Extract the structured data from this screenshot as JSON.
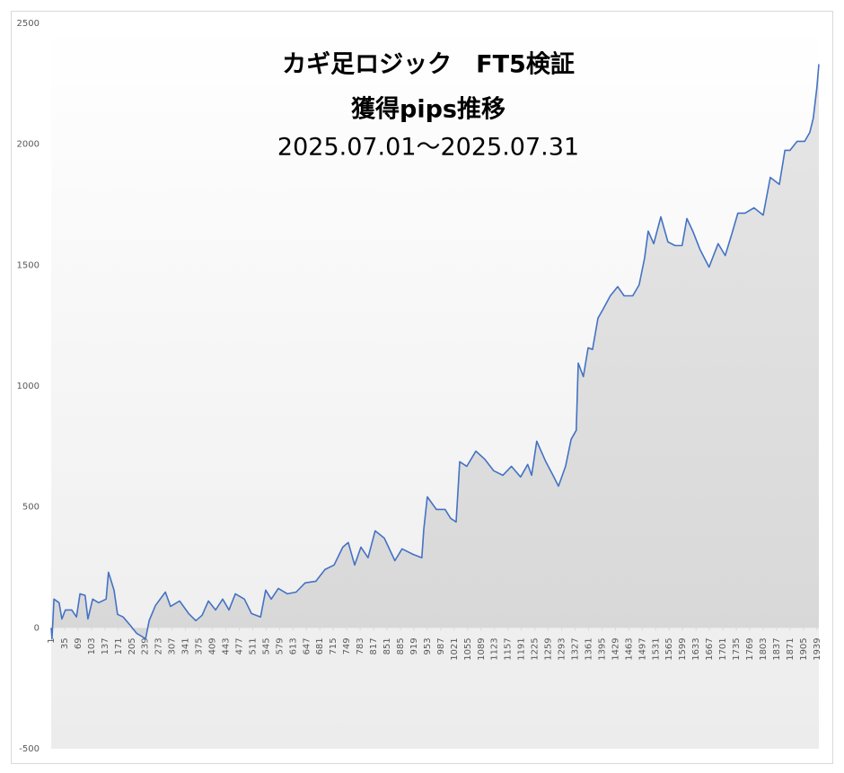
{
  "chart_data": {
    "type": "area",
    "title_lines": [
      "カギ足ロジック　FT5検証",
      "獲得pips推移",
      "2025.07.01～2025.07.31"
    ],
    "color": "#4472c4",
    "x": [
      1,
      3,
      8,
      21,
      28,
      37,
      53,
      65,
      74,
      87,
      94,
      106,
      121,
      140,
      146,
      160,
      169,
      183,
      201,
      217,
      240,
      249,
      265,
      290,
      303,
      326,
      349,
      367,
      383,
      399,
      417,
      435,
      451,
      467,
      490,
      508,
      531,
      544,
      558,
      576,
      599,
      621,
      644,
      671,
      694,
      717,
      739,
      753,
      769,
      785,
      803,
      821,
      844,
      871,
      889,
      917,
      939,
      944,
      953,
      976,
      998,
      1012,
      1026,
      1035,
      1053,
      1076,
      1098,
      1121,
      1144,
      1166,
      1189,
      1207,
      1217,
      1230,
      1253,
      1271,
      1285,
      1303,
      1317,
      1330,
      1335,
      1348,
      1360,
      1371,
      1385,
      1398,
      1416,
      1435,
      1451,
      1473,
      1489,
      1503,
      1512,
      1526,
      1544,
      1562,
      1580,
      1598,
      1610,
      1625,
      1643,
      1666,
      1689,
      1707,
      1723,
      1739,
      1757,
      1780,
      1803,
      1821,
      1844,
      1858,
      1871,
      1889,
      1908,
      1921,
      1930,
      1939,
      1944
    ],
    "values": [
      0,
      -45,
      119,
      104,
      37,
      74,
      74,
      45,
      141,
      134,
      37,
      119,
      104,
      119,
      230,
      156,
      56,
      45,
      11,
      -22,
      -45,
      30,
      93,
      148,
      89,
      111,
      59,
      30,
      52,
      111,
      74,
      119,
      74,
      141,
      119,
      59,
      45,
      156,
      119,
      163,
      141,
      148,
      186,
      193,
      241,
      260,
      334,
      353,
      260,
      334,
      290,
      401,
      371,
      278,
      327,
      304,
      290,
      408,
      542,
      490,
      490,
      453,
      438,
      687,
      668,
      731,
      698,
      650,
      631,
      668,
      624,
      676,
      631,
      772,
      687,
      631,
      586,
      668,
      780,
      817,
      1095,
      1039,
      1158,
      1151,
      1281,
      1318,
      1373,
      1411,
      1373,
      1373,
      1418,
      1529,
      1641,
      1589,
      1700,
      1596,
      1581,
      1581,
      1693,
      1641,
      1566,
      1492,
      1589,
      1540,
      1626,
      1715,
      1715,
      1737,
      1707,
      1863,
      1834,
      1975,
      1975,
      2012,
      2012,
      2049,
      2108,
      2235,
      2331
    ],
    "xlim": [
      1,
      1944
    ],
    "xticks": [
      1,
      35,
      69,
      103,
      137,
      171,
      205,
      239,
      273,
      307,
      341,
      375,
      409,
      443,
      477,
      511,
      545,
      579,
      613,
      647,
      681,
      715,
      749,
      783,
      817,
      851,
      885,
      919,
      953,
      987,
      1021,
      1055,
      1089,
      1123,
      1157,
      1191,
      1225,
      1259,
      1293,
      1327,
      1361,
      1395,
      1429,
      1463,
      1497,
      1531,
      1565,
      1599,
      1633,
      1667,
      1701,
      1735,
      1769,
      1803,
      1837,
      1871,
      1905,
      1939
    ],
    "ylim": [
      -500,
      2500
    ],
    "yticks": [
      -500,
      0,
      500,
      1000,
      1500,
      2000,
      2500
    ]
  }
}
